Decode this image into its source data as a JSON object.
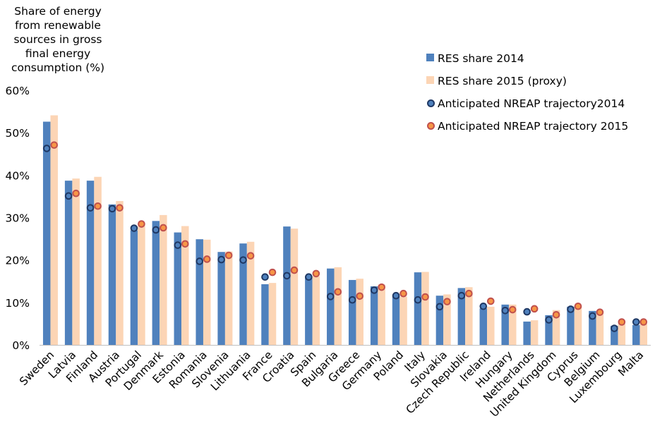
{
  "chart_data": {
    "type": "bar",
    "ylabel": "Share of energy from renewable sources in gross final energy consumption (%)",
    "xlabel": "",
    "ylim": [
      0,
      60
    ],
    "yticks": [
      "0%",
      "10%",
      "20%",
      "30%",
      "40%",
      "50%",
      "60%"
    ],
    "categories": [
      "Sweden",
      "Latvia",
      "Finland",
      "Austria",
      "Portugal",
      "Denmark",
      "Estonia",
      "Romania",
      "Slovenia",
      "Lithuania",
      "France",
      "Croatia",
      "Spain",
      "Bulgaria",
      "Greece",
      "Germany",
      "Poland",
      "Italy",
      "Slovakia",
      "Czech Republic",
      "Ireland",
      "Hungary",
      "Netherlands",
      "United Kingdom",
      "Cyprus",
      "Belgium",
      "Luxembourg",
      "Malta"
    ],
    "series": [
      {
        "name": "RES share 2014",
        "kind": "bar",
        "color": "#4F81BD",
        "values": [
          52.6,
          38.7,
          38.7,
          33.1,
          27.0,
          29.2,
          26.5,
          24.9,
          21.9,
          23.9,
          14.3,
          27.9,
          16.2,
          18.0,
          15.3,
          13.8,
          11.4,
          17.1,
          11.6,
          13.4,
          8.6,
          9.5,
          5.5,
          7.0,
          9.0,
          8.0,
          4.5,
          4.7
        ]
      },
      {
        "name": "RES share 2015 (proxy)",
        "kind": "bar",
        "color": "#FCD5B5",
        "values": [
          54.1,
          39.2,
          39.6,
          33.9,
          28.4,
          30.6,
          28.0,
          24.8,
          22.0,
          24.3,
          14.6,
          27.4,
          16.2,
          18.3,
          15.6,
          14.2,
          11.4,
          17.2,
          11.9,
          13.6,
          9.0,
          9.5,
          5.8,
          8.2,
          9.2,
          8.0,
          5.0,
          5.0
        ]
      },
      {
        "name": "Anticipated NREAP trajectory2014",
        "kind": "marker",
        "color": "#4F81BD",
        "edge": "#1F3864",
        "values": [
          46.3,
          35.1,
          32.3,
          32.1,
          27.5,
          27.1,
          23.5,
          19.7,
          20.1,
          20.0,
          16.0,
          16.3,
          16.0,
          11.4,
          10.6,
          12.9,
          11.6,
          10.6,
          9.0,
          11.6,
          9.1,
          8.1,
          7.8,
          5.9,
          8.4,
          6.8,
          3.9,
          5.4
        ]
      },
      {
        "name": "Anticipated NREAP trajectory 2015",
        "kind": "marker",
        "color": "#F79646",
        "edge": "#C0504D",
        "values": [
          47.1,
          35.7,
          32.7,
          32.3,
          28.5,
          27.6,
          23.8,
          20.2,
          21.1,
          21.0,
          17.1,
          17.6,
          16.8,
          12.5,
          11.5,
          13.6,
          12.1,
          11.3,
          10.2,
          12.1,
          10.3,
          8.3,
          8.5,
          7.1,
          9.1,
          7.7,
          5.4,
          5.4
        ]
      }
    ],
    "legend_position": "top-right",
    "grid": false
  }
}
